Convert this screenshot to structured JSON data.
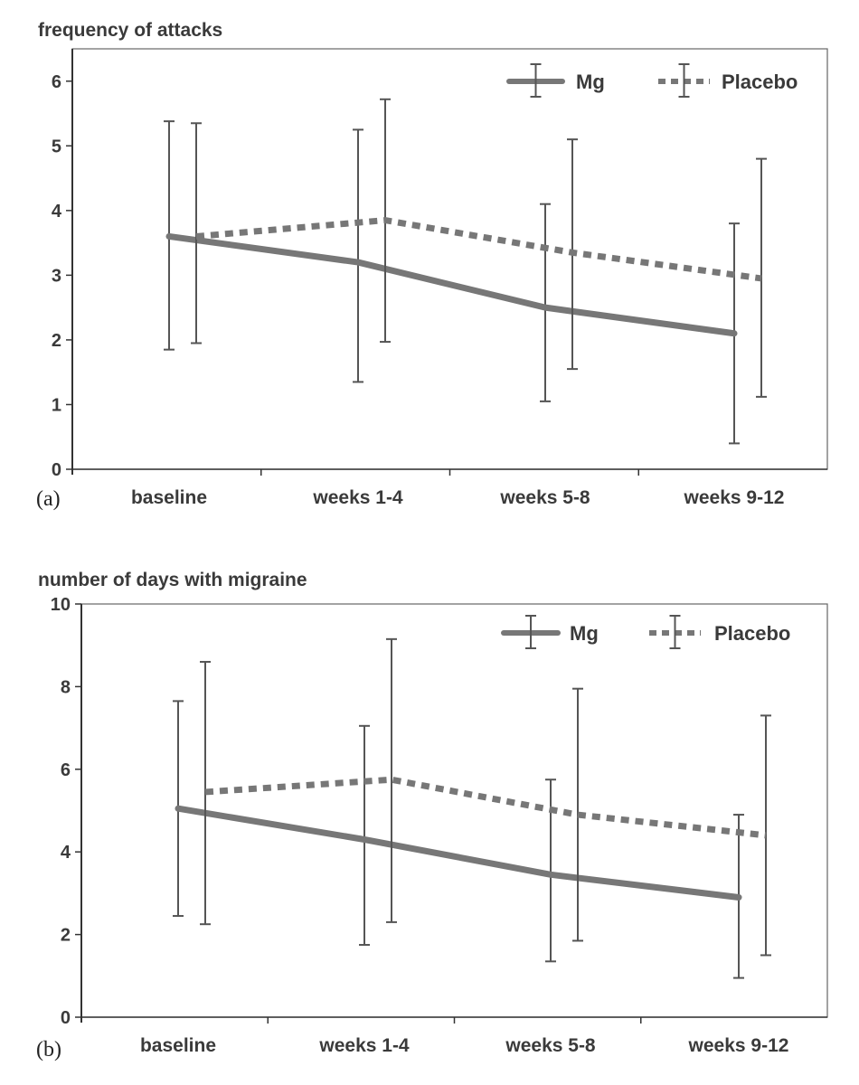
{
  "chart_data": [
    {
      "type": "line",
      "panel_label": "(a)",
      "ylabel": "frequency of attacks",
      "xlabel": "",
      "categories": [
        "baseline",
        "weeks 1-4",
        "weeks 5-8",
        "weeks 9-12"
      ],
      "ylim": [
        0,
        6.5
      ],
      "yticks": [
        "0",
        "1",
        "2",
        "3",
        "4",
        "5",
        "6"
      ],
      "legend_position": "top-right",
      "grid": false,
      "series": [
        {
          "name": "Mg",
          "style": "solid",
          "color": "#777777",
          "values": [
            3.6,
            3.2,
            2.5,
            2.1
          ],
          "error_low": [
            1.85,
            1.35,
            1.05,
            0.4
          ],
          "error_high": [
            5.38,
            5.25,
            4.1,
            3.8
          ]
        },
        {
          "name": "Placebo",
          "style": "dashed",
          "color": "#777777",
          "values": [
            3.6,
            3.85,
            3.35,
            2.95
          ],
          "error_low": [
            1.95,
            1.97,
            1.55,
            1.12
          ],
          "error_high": [
            5.35,
            5.72,
            5.1,
            4.8
          ]
        }
      ]
    },
    {
      "type": "line",
      "panel_label": "(b)",
      "ylabel": "number of days with migraine",
      "xlabel": "",
      "categories": [
        "baseline",
        "weeks 1-4",
        "weeks 5-8",
        "weeks 9-12"
      ],
      "ylim": [
        0,
        10
      ],
      "yticks": [
        "0",
        "2",
        "4",
        "6",
        "8",
        "10"
      ],
      "legend_position": "top-right",
      "grid": false,
      "series": [
        {
          "name": "Mg",
          "style": "solid",
          "color": "#777777",
          "values": [
            5.05,
            4.3,
            3.45,
            2.9
          ],
          "error_low": [
            2.45,
            1.75,
            1.35,
            0.95
          ],
          "error_high": [
            7.65,
            7.05,
            5.75,
            4.9
          ]
        },
        {
          "name": "Placebo",
          "style": "dashed",
          "color": "#777777",
          "values": [
            5.45,
            5.75,
            4.9,
            4.4
          ],
          "error_low": [
            2.25,
            2.3,
            1.85,
            1.5
          ],
          "error_high": [
            8.6,
            9.15,
            7.95,
            7.3
          ]
        }
      ]
    }
  ]
}
